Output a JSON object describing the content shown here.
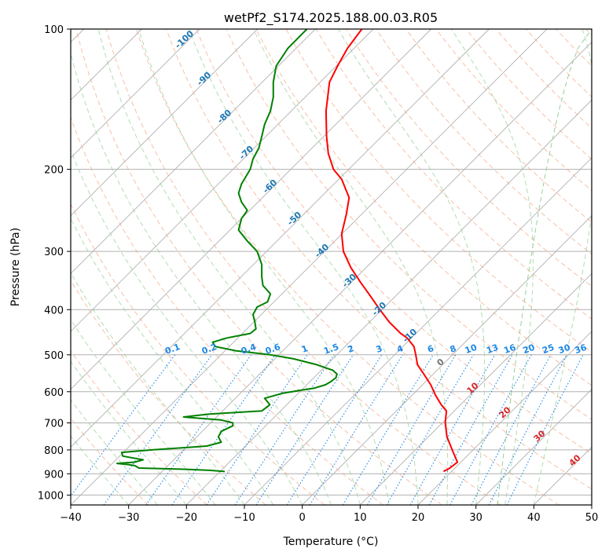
{
  "chart_data": {
    "type": "line",
    "title": "wetPf2_S174.2025.188.00.03.R05",
    "xlabel": "Temperature (°C)",
    "ylabel": "Pressure (hPa)",
    "xlim": [
      -40,
      50
    ],
    "ylim": [
      1050,
      100
    ],
    "yscale": "log",
    "grid": true,
    "x_ticks": [
      "−40",
      "−30",
      "−20",
      "−10",
      "0",
      "10",
      "20",
      "30",
      "40",
      "50"
    ],
    "y_ticks": [
      "100",
      "200",
      "300",
      "400",
      "500",
      "600",
      "700",
      "800",
      "900",
      "1000"
    ],
    "series": [
      {
        "color": "#ff0000",
        "values": [
          {
            "p": 890,
            "t": 24.4
          },
          {
            "p": 875,
            "t": 25.5
          },
          {
            "p": 850,
            "t": 26.8
          },
          {
            "p": 800,
            "t": 25.9
          },
          {
            "p": 750,
            "t": 25.0
          },
          {
            "p": 700,
            "t": 24.7
          },
          {
            "p": 660,
            "t": 24.9
          },
          {
            "p": 640,
            "t": 24.0
          },
          {
            "p": 610,
            "t": 23.0
          },
          {
            "p": 580,
            "t": 22.2
          },
          {
            "p": 550,
            "t": 21.0
          },
          {
            "p": 525,
            "t": 19.9
          },
          {
            "p": 500,
            "t": 19.6
          },
          {
            "p": 480,
            "t": 19.3
          },
          {
            "p": 460,
            "t": 18.1
          },
          {
            "p": 450,
            "t": 17.0
          },
          {
            "p": 425,
            "t": 15.0
          },
          {
            "p": 400,
            "t": 13.4
          },
          {
            "p": 370,
            "t": 11.5
          },
          {
            "p": 350,
            "t": 10.1
          },
          {
            "p": 325,
            "t": 8.4
          },
          {
            "p": 300,
            "t": 7.1
          },
          {
            "p": 275,
            "t": 6.8
          },
          {
            "p": 250,
            "t": 7.6
          },
          {
            "p": 230,
            "t": 8.1
          },
          {
            "p": 210,
            "t": 6.8
          },
          {
            "p": 200,
            "t": 5.4
          },
          {
            "p": 185,
            "t": 4.5
          },
          {
            "p": 170,
            "t": 4.2
          },
          {
            "p": 150,
            "t": 4.1
          },
          {
            "p": 130,
            "t": 4.7
          },
          {
            "p": 120,
            "t": 6.1
          },
          {
            "p": 110,
            "t": 7.8
          },
          {
            "p": 100,
            "t": 10.3
          }
        ]
      },
      {
        "color": "#008000",
        "values": [
          {
            "p": 890,
            "t": -13.4
          },
          {
            "p": 885,
            "t": -16.0
          },
          {
            "p": 880,
            "t": -20.5
          },
          {
            "p": 875,
            "t": -28.2
          },
          {
            "p": 865,
            "t": -28.9
          },
          {
            "p": 860,
            "t": -30.0
          },
          {
            "p": 855,
            "t": -32.0
          },
          {
            "p": 850,
            "t": -29.0
          },
          {
            "p": 840,
            "t": -27.5
          },
          {
            "p": 825,
            "t": -31.0
          },
          {
            "p": 810,
            "t": -31.2
          },
          {
            "p": 800,
            "t": -26.0
          },
          {
            "p": 785,
            "t": -16.5
          },
          {
            "p": 770,
            "t": -14.0
          },
          {
            "p": 750,
            "t": -14.5
          },
          {
            "p": 730,
            "t": -14.0
          },
          {
            "p": 710,
            "t": -12.0
          },
          {
            "p": 700,
            "t": -12.0
          },
          {
            "p": 690,
            "t": -14.0
          },
          {
            "p": 680,
            "t": -20.5
          },
          {
            "p": 670,
            "t": -16.0
          },
          {
            "p": 660,
            "t": -7.0
          },
          {
            "p": 640,
            "t": -5.6
          },
          {
            "p": 620,
            "t": -6.5
          },
          {
            "p": 605,
            "t": -3.5
          },
          {
            "p": 595,
            "t": 0.0
          },
          {
            "p": 590,
            "t": 2.0
          },
          {
            "p": 580,
            "t": 4.0
          },
          {
            "p": 570,
            "t": 5.0
          },
          {
            "p": 560,
            "t": 5.8
          },
          {
            "p": 550,
            "t": 6.0
          },
          {
            "p": 540,
            "t": 5.3
          },
          {
            "p": 525,
            "t": 2.5
          },
          {
            "p": 510,
            "t": -1.5
          },
          {
            "p": 500,
            "t": -5.5
          },
          {
            "p": 490,
            "t": -11.5
          },
          {
            "p": 480,
            "t": -15.0
          },
          {
            "p": 470,
            "t": -15.5
          },
          {
            "p": 460,
            "t": -13.0
          },
          {
            "p": 450,
            "t": -9.0
          },
          {
            "p": 440,
            "t": -8.0
          },
          {
            "p": 425,
            "t": -8.2
          },
          {
            "p": 410,
            "t": -8.5
          },
          {
            "p": 395,
            "t": -7.8
          },
          {
            "p": 385,
            "t": -6.0
          },
          {
            "p": 370,
            "t": -5.5
          },
          {
            "p": 355,
            "t": -6.8
          },
          {
            "p": 340,
            "t": -7.0
          },
          {
            "p": 320,
            "t": -7.0
          },
          {
            "p": 300,
            "t": -7.8
          },
          {
            "p": 285,
            "t": -9.5
          },
          {
            "p": 270,
            "t": -11.0
          },
          {
            "p": 255,
            "t": -10.5
          },
          {
            "p": 245,
            "t": -9.5
          },
          {
            "p": 235,
            "t": -10.5
          },
          {
            "p": 225,
            "t": -11.0
          },
          {
            "p": 215,
            "t": -10.5
          },
          {
            "p": 200,
            "t": -9.0
          },
          {
            "p": 190,
            "t": -8.5
          },
          {
            "p": 180,
            "t": -7.5
          },
          {
            "p": 170,
            "t": -7.0
          },
          {
            "p": 160,
            "t": -6.5
          },
          {
            "p": 150,
            "t": -5.5
          },
          {
            "p": 140,
            "t": -5.0
          },
          {
            "p": 130,
            "t": -5.0
          },
          {
            "p": 120,
            "t": -4.5
          },
          {
            "p": 110,
            "t": -2.5
          },
          {
            "p": 100,
            "t": 0.8
          }
        ]
      }
    ],
    "dry_adiabat_labels": [
      "-100",
      "-90",
      "-80",
      "-70",
      "-60",
      "-50",
      "-40",
      "-30",
      "-20",
      "-10",
      "0",
      "10",
      "20",
      "30",
      "40"
    ],
    "mixing_ratio_labels": [
      "0.1",
      "0.2",
      "0.4",
      "0.6",
      "1",
      "1.5",
      "2",
      "3",
      "4",
      "6",
      "8",
      "10",
      "13",
      "16",
      "20",
      "25",
      "30",
      "36"
    ],
    "colors": {
      "isotherm": "#b0b0b0",
      "isobar": "#b0b0b0",
      "dry_adiabat": "#f4a582",
      "moist_adiabat": "#98d098",
      "mixing_ratio": "#1e88e5",
      "dry_adiabat_label_cold": "#1f77b4",
      "dry_adiabat_label_warm": "#d62728",
      "zero_label": "#777777",
      "envelope": "#d8c0a0"
    }
  }
}
